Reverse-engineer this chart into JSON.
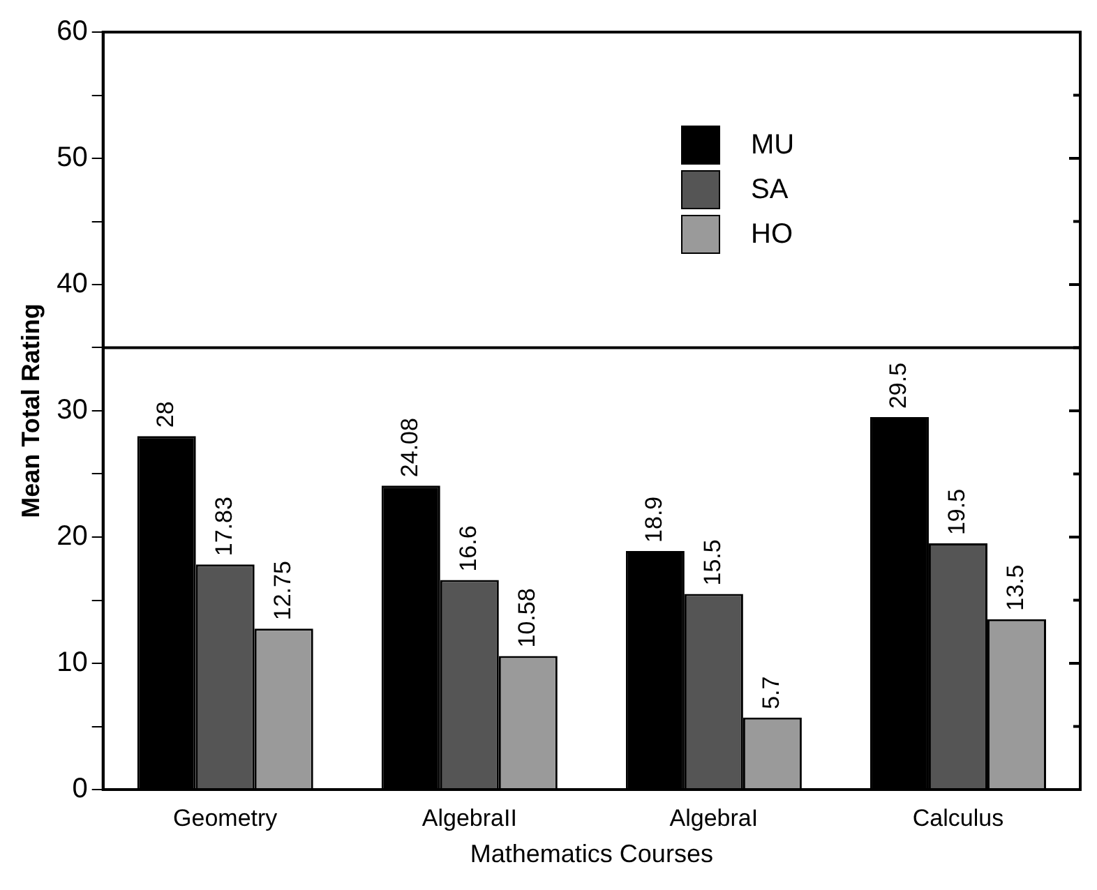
{
  "chart_data": {
    "type": "bar",
    "xlabel": "Mathematics Courses",
    "ylabel": "Mean Total Rating",
    "categories": [
      "Geometry",
      "AlgebraII",
      "AlgebraI",
      "Calculus"
    ],
    "series": [
      {
        "name": "MU",
        "color": "#000000",
        "values": [
          28,
          24.08,
          18.9,
          29.5
        ]
      },
      {
        "name": "SA",
        "color": "#555555",
        "values": [
          17.83,
          16.6,
          15.5,
          19.5
        ]
      },
      {
        "name": "HO",
        "color": "#9a9a9a",
        "values": [
          12.75,
          10.58,
          5.7,
          13.5
        ]
      }
    ],
    "ylim": [
      0,
      60
    ],
    "yticks": [
      0,
      {
        "value": 5,
        "label": null
      },
      10,
      {
        "value": 15,
        "label": null
      },
      20,
      {
        "value": 25,
        "label": null
      },
      30,
      {
        "value": 35,
        "label": null
      },
      40,
      {
        "value": 45,
        "label": null
      },
      50,
      {
        "value": 55,
        "label": null
      },
      60
    ],
    "ref_lines": [
      {
        "axis": "y",
        "value": 35,
        "color": "#000000"
      }
    ],
    "data_labels": true,
    "grid": false,
    "legend": "top right"
  }
}
